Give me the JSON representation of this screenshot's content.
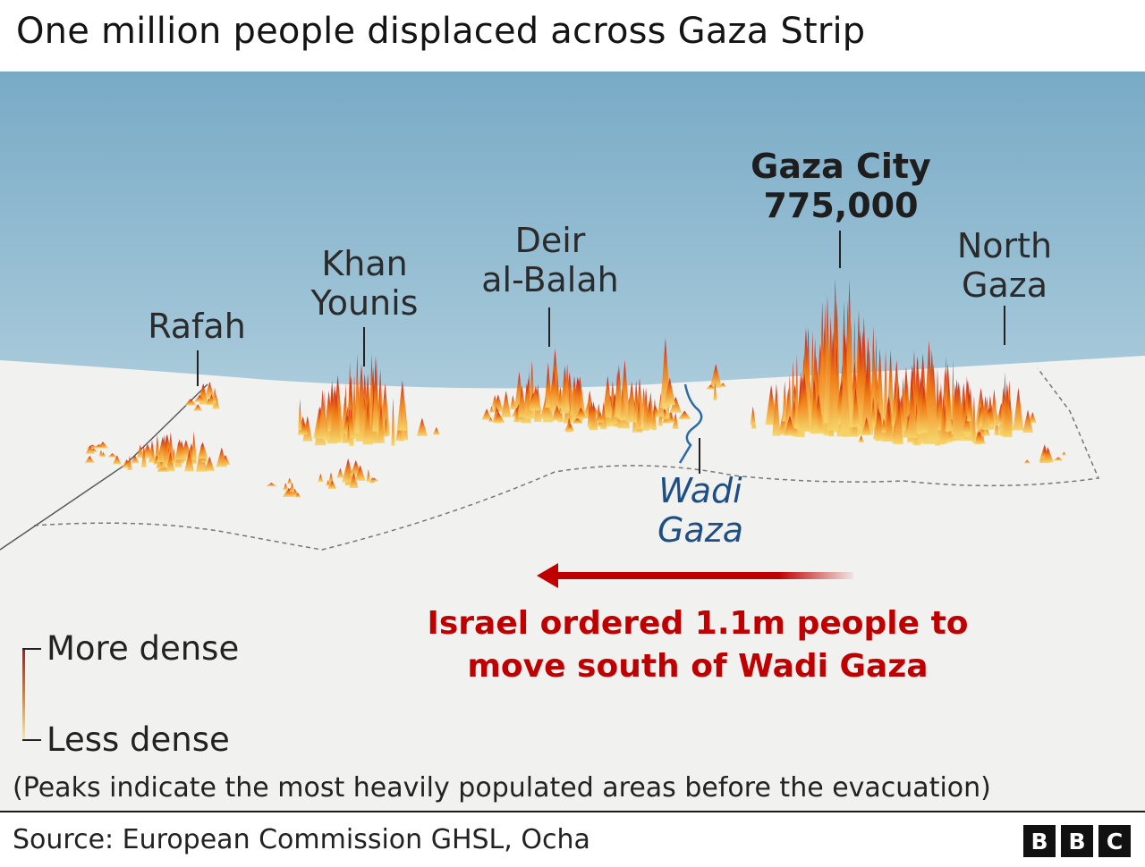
{
  "title": "One million people displaced across Gaza Strip",
  "places": {
    "rafah": "Rafah",
    "khan_younis": [
      "Khan",
      "Younis"
    ],
    "deir_al_balah": [
      "Deir",
      "al-Balah"
    ],
    "gaza_city": [
      "Gaza City",
      "775,000"
    ],
    "north_gaza": [
      "North",
      "Gaza"
    ],
    "wadi_gaza": [
      "Wadi",
      "Gaza"
    ]
  },
  "evacuation": {
    "line1": "Israel ordered 1.1m people to",
    "line2": "move south of Wadi Gaza"
  },
  "legend": {
    "more": "More dense",
    "less": "Less dense"
  },
  "note": "(Peaks indicate the most heavily populated areas before the evacuation)",
  "source": "Source: European Commission GHSL, Ocha",
  "logo": [
    "B",
    "B",
    "C"
  ],
  "colors": {
    "sea": "#7fb1cc",
    "land": "#f1f1ef",
    "peak_high": "#c0101a",
    "peak_mid": "#f07a12",
    "peak_low": "#f5d56a",
    "arrow": "#c00000",
    "river": "#1d4f86"
  }
}
